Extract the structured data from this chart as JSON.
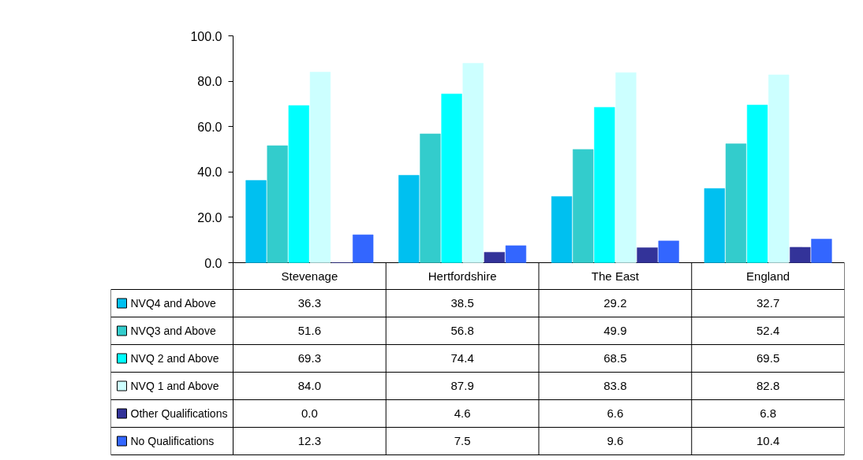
{
  "chart_data": {
    "type": "bar",
    "categories": [
      "Stevenage",
      "Hertfordshire",
      "The East",
      "England"
    ],
    "series": [
      {
        "name": "NVQ4 and Above",
        "color": "#00c0f0",
        "values": [
          36.3,
          38.5,
          29.2,
          32.7
        ],
        "value_labels": [
          "36.3",
          "38.5",
          "29.2",
          "32.7"
        ]
      },
      {
        "name": "NVQ3 and Above",
        "color": "#33cccc",
        "values": [
          51.6,
          56.8,
          49.9,
          52.4
        ],
        "value_labels": [
          "51.6",
          "56.8",
          "49.9",
          "52.4"
        ]
      },
      {
        "name": "NVQ 2 and Above",
        "color": "#00ffff",
        "values": [
          69.3,
          74.4,
          68.5,
          69.5
        ],
        "value_labels": [
          "69.3",
          "74.4",
          "68.5",
          "69.5"
        ]
      },
      {
        "name": "NVQ 1 and Above",
        "color": "#ccffff",
        "values": [
          84.0,
          87.9,
          83.8,
          82.8
        ],
        "value_labels": [
          "84.0",
          "87.9",
          "83.8",
          "82.8"
        ]
      },
      {
        "name": "Other Qualifications",
        "color": "#333399",
        "values": [
          0.0,
          4.6,
          6.6,
          6.8
        ],
        "value_labels": [
          "0.0",
          "4.6",
          "6.6",
          "6.8"
        ]
      },
      {
        "name": "No Qualifications",
        "color": "#3366ff",
        "values": [
          12.3,
          7.5,
          9.6,
          10.4
        ],
        "value_labels": [
          "12.3",
          "7.5",
          "9.6",
          "10.4"
        ]
      }
    ],
    "ylim": [
      0,
      100
    ],
    "yticks": [
      {
        "value": 0,
        "label": "0.0"
      },
      {
        "value": 20,
        "label": "20.0"
      },
      {
        "value": 40,
        "label": "40.0"
      },
      {
        "value": 60,
        "label": "60.0"
      },
      {
        "value": 80,
        "label": "80.0"
      },
      {
        "value": 100,
        "label": "100.0"
      }
    ],
    "grid": false,
    "legend": "bottom left"
  }
}
